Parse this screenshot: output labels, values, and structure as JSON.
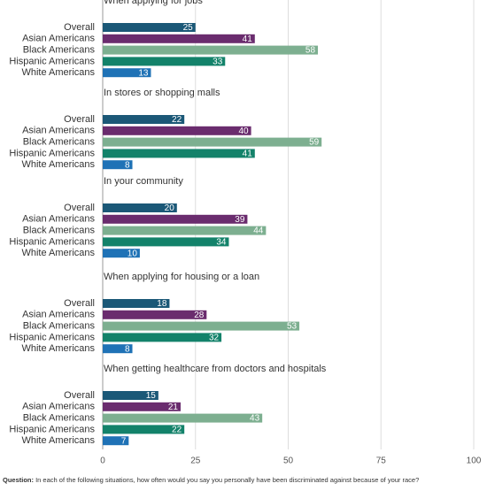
{
  "chart_data": {
    "type": "bar",
    "categories": [
      "Overall",
      "Asian Americans",
      "Black Americans",
      "Hispanic Americans",
      "White Americans"
    ],
    "colors": [
      "#1b5877",
      "#6a2c6e",
      "#7daf90",
      "#13826a",
      "#1f72b6"
    ],
    "panels": [
      {
        "title": "When applying for jobs",
        "values": [
          25,
          41,
          58,
          33,
          13
        ]
      },
      {
        "title": "In stores or shopping malls",
        "values": [
          22,
          40,
          59,
          41,
          8
        ]
      },
      {
        "title": "In your community",
        "values": [
          20,
          39,
          44,
          34,
          10
        ]
      },
      {
        "title": "When applying for housing or a loan",
        "values": [
          18,
          28,
          53,
          32,
          8
        ]
      },
      {
        "title": "When getting healthcare from doctors and hospitals",
        "values": [
          15,
          21,
          43,
          22,
          7
        ]
      }
    ],
    "xlim": [
      0,
      100
    ],
    "xticks": [
      0,
      25,
      50,
      75,
      100
    ],
    "grid": true,
    "note": {
      "label": "Question:",
      "text": "In each of the following situations, how often would you say you personally have been discriminated against because of your race?"
    }
  }
}
